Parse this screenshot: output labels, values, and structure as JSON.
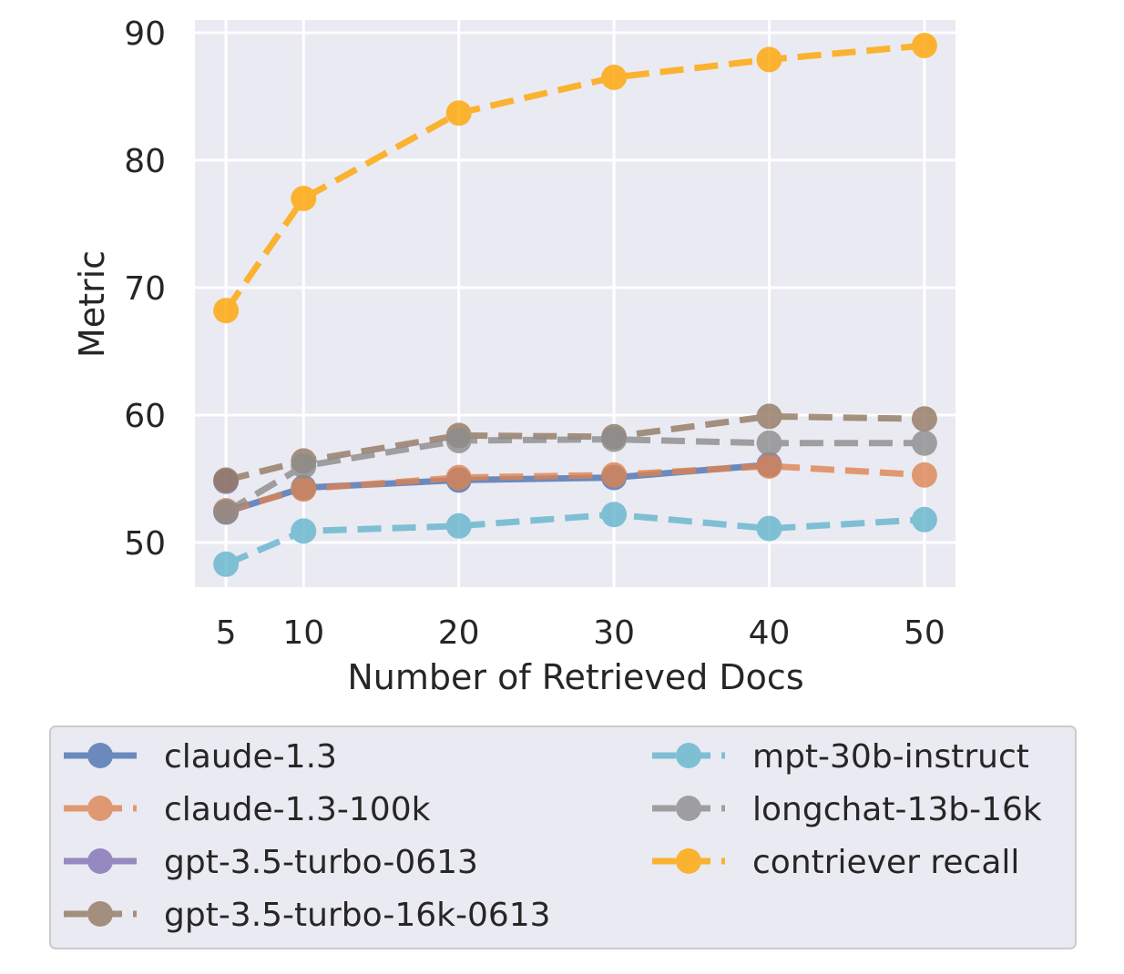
{
  "chart_data": {
    "type": "line",
    "xlabel": "Number of Retrieved Docs",
    "ylabel": "Metric",
    "x": [
      5,
      10,
      20,
      30,
      40,
      50
    ],
    "xticks": [
      5,
      10,
      20,
      30,
      40,
      50
    ],
    "yticks": [
      50,
      60,
      70,
      80,
      90
    ],
    "xlim": [
      3,
      52
    ],
    "ylim": [
      46.5,
      91
    ],
    "grid": true,
    "legend_position": "bottom",
    "series": [
      {
        "name": "claude-1.3",
        "color": "#4c72b0",
        "dash": false,
        "x": [
          5,
          10,
          20,
          30,
          40
        ],
        "values": [
          52.4,
          54.3,
          54.9,
          55.1,
          56.1
        ]
      },
      {
        "name": "claude-1.3-100k",
        "color": "#dd8452",
        "dash": true,
        "x": [
          5,
          10,
          20,
          30,
          40,
          50
        ],
        "values": [
          52.5,
          54.2,
          55.1,
          55.3,
          56.0,
          55.3
        ]
      },
      {
        "name": "gpt-3.5-turbo-0613",
        "color": "#8172b3",
        "dash": false,
        "x": [
          5
        ],
        "values": [
          54.8
        ]
      },
      {
        "name": "gpt-3.5-turbo-16k-0613",
        "color": "#937860",
        "dash": true,
        "x": [
          5,
          10,
          20,
          30,
          40,
          50
        ],
        "values": [
          54.9,
          56.4,
          58.4,
          58.3,
          59.9,
          59.7
        ]
      },
      {
        "name": "mpt-30b-instruct",
        "color": "#64b5cd",
        "dash": true,
        "x": [
          5,
          10,
          20,
          30,
          40,
          50
        ],
        "values": [
          48.3,
          50.9,
          51.3,
          52.2,
          51.1,
          51.8
        ]
      },
      {
        "name": "longchat-13b-16k",
        "color": "#8c8c8c",
        "dash": true,
        "x": [
          5,
          10,
          20,
          30,
          40,
          50
        ],
        "values": [
          52.4,
          56.0,
          58.0,
          58.1,
          57.8,
          57.8
        ]
      },
      {
        "name": "contriever recall",
        "color": "#ffa500",
        "dash": true,
        "x": [
          5,
          10,
          20,
          30,
          40,
          50
        ],
        "values": [
          68.2,
          77.0,
          83.7,
          86.5,
          87.9,
          89.0
        ]
      }
    ]
  }
}
